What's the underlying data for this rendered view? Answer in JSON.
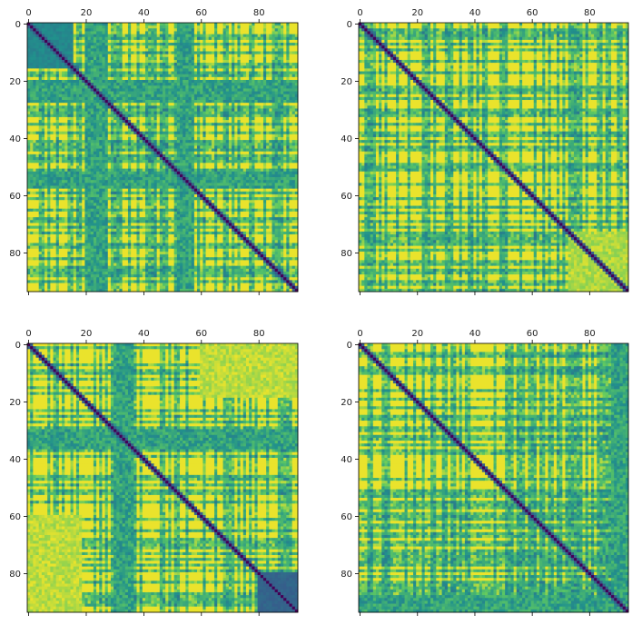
{
  "chart_data": [
    {
      "type": "heatmap",
      "title": "",
      "xlabel": "",
      "ylabel": "",
      "size": 94,
      "xlim": [
        0,
        93
      ],
      "ylim": [
        93,
        0
      ],
      "x_ticks": [
        0,
        20,
        40,
        60,
        80
      ],
      "y_ticks": [
        0,
        20,
        40,
        60,
        80
      ],
      "x_tick_labels": [
        "0",
        "20",
        "40",
        "60",
        "80"
      ],
      "y_tick_labels": [
        "0",
        "20",
        "40",
        "60",
        "80"
      ],
      "x_tick_position": "top",
      "diagonal_value": 0.0,
      "value_range": [
        0,
        1
      ],
      "pattern": "symmetric matrix, dark diagonal; dense mid-range band rows/cols 20-27, large high-value (yellow) blocks top-right and left, speckled bottom-right",
      "seed": 11,
      "high_fraction": 0.45,
      "bands": [
        [
          20,
          27
        ],
        [
          52,
          57
        ]
      ],
      "blocks": [
        {
          "r": [
            0,
            15
          ],
          "c": [
            0,
            15
          ],
          "v": 0.5
        }
      ]
    },
    {
      "type": "heatmap",
      "title": "",
      "xlabel": "",
      "ylabel": "",
      "size": 94,
      "xlim": [
        0,
        93
      ],
      "ylim": [
        93,
        0
      ],
      "x_ticks": [
        0,
        20,
        40,
        60,
        80
      ],
      "y_ticks": [
        0,
        20,
        40,
        60,
        80
      ],
      "x_tick_labels": [
        "0",
        "20",
        "40",
        "60",
        "80"
      ],
      "y_tick_labels": [
        "0",
        "20",
        "40",
        "60",
        "80"
      ],
      "x_tick_position": "top",
      "diagonal_value": 0.0,
      "value_range": [
        0,
        1
      ],
      "pattern": "symmetric matrix, dark diagonal; grid of mixed green/yellow stripes, high-value columns beyond 72",
      "seed": 23,
      "high_fraction": 0.5,
      "bands": [],
      "blocks": [
        {
          "r": [
            73,
            93
          ],
          "c": [
            73,
            93
          ],
          "v": 0.95
        }
      ]
    },
    {
      "type": "heatmap",
      "title": "",
      "xlabel": "",
      "ylabel": "",
      "size": 94,
      "xlim": [
        0,
        93
      ],
      "ylim": [
        93,
        0
      ],
      "x_ticks": [
        0,
        20,
        40,
        60,
        80
      ],
      "y_ticks": [
        0,
        20,
        40,
        60,
        80
      ],
      "x_tick_labels": [
        "0",
        "20",
        "40",
        "60",
        "80"
      ],
      "y_tick_labels": [
        "0",
        "20",
        "40",
        "60",
        "80"
      ],
      "x_tick_position": "top",
      "diagonal_value": 0.0,
      "value_range": [
        0,
        1
      ],
      "pattern": "symmetric matrix, dark diagonal; yellow top-right block, dense low-value cells near bottom-right corner",
      "seed": 37,
      "high_fraction": 0.5,
      "bands": [
        [
          30,
          36
        ]
      ],
      "blocks": [
        {
          "r": [
            0,
            18
          ],
          "c": [
            60,
            93
          ],
          "v": 0.97
        },
        {
          "r": [
            80,
            93
          ],
          "c": [
            80,
            93
          ],
          "v": 0.35
        }
      ]
    },
    {
      "type": "heatmap",
      "title": "",
      "xlabel": "",
      "ylabel": "",
      "size": 94,
      "xlim": [
        0,
        93
      ],
      "ylim": [
        93,
        0
      ],
      "x_ticks": [
        0,
        20,
        40,
        60,
        80
      ],
      "y_ticks": [
        0,
        20,
        40,
        60,
        80
      ],
      "x_tick_labels": [
        "0",
        "20",
        "40",
        "60",
        "80"
      ],
      "y_tick_labels": [
        "0",
        "20",
        "40",
        "60",
        "80"
      ],
      "x_tick_position": "top",
      "diagonal_value": 0.0,
      "value_range": [
        0,
        1
      ],
      "pattern": "symmetric matrix, dark diagonal; fine alternating green/yellow pattern throughout, low-value band near rows 88-93",
      "seed": 53,
      "high_fraction": 0.4,
      "bands": [
        [
          88,
          93
        ]
      ],
      "blocks": []
    }
  ]
}
